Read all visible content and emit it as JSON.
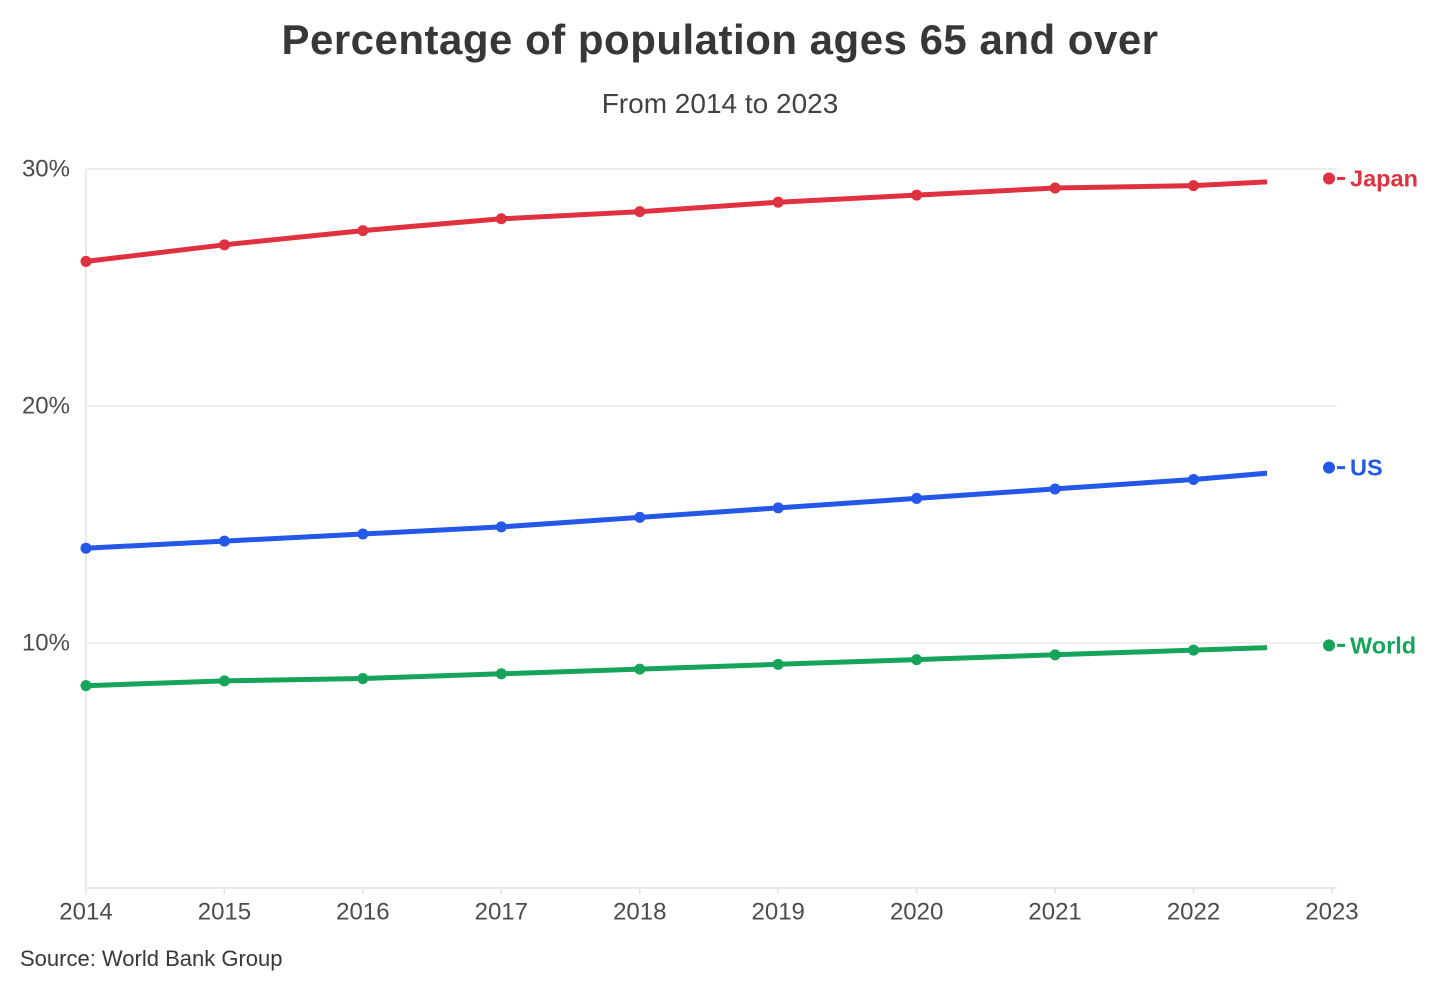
{
  "title": "Percentage of population ages 65 and over",
  "subtitle": "From 2014 to 2023",
  "source": "Source: World Bank Group",
  "chart_data": {
    "type": "line",
    "x": [
      2014,
      2015,
      2016,
      2017,
      2018,
      2019,
      2020,
      2021,
      2022,
      2023
    ],
    "series": [
      {
        "name": "Japan",
        "color": "#e03140",
        "values": [
          26.1,
          26.8,
          27.4,
          27.9,
          28.2,
          28.6,
          28.9,
          29.2,
          29.3,
          29.6
        ]
      },
      {
        "name": "US",
        "color": "#2358e8",
        "values": [
          14.0,
          14.3,
          14.6,
          14.9,
          15.3,
          15.7,
          16.1,
          16.5,
          16.9,
          17.4
        ]
      },
      {
        "name": "World",
        "color": "#16a45a",
        "values": [
          8.2,
          8.4,
          8.5,
          8.7,
          8.9,
          9.1,
          9.3,
          9.5,
          9.7,
          9.9
        ]
      }
    ],
    "y_ticks": [
      {
        "label": "30%",
        "value": 30
      },
      {
        "label": "20%",
        "value": 20
      },
      {
        "label": "10%",
        "value": 10
      }
    ],
    "ylim": [
      0,
      30
    ],
    "grid": "horizontal",
    "legend_position": "right-end-of-line",
    "marker": "filled-circle"
  },
  "style": {
    "grid_color": "#e9e9e9",
    "axis_color": "#e2e2e2",
    "tick_label_color": "#4c4c4c"
  }
}
